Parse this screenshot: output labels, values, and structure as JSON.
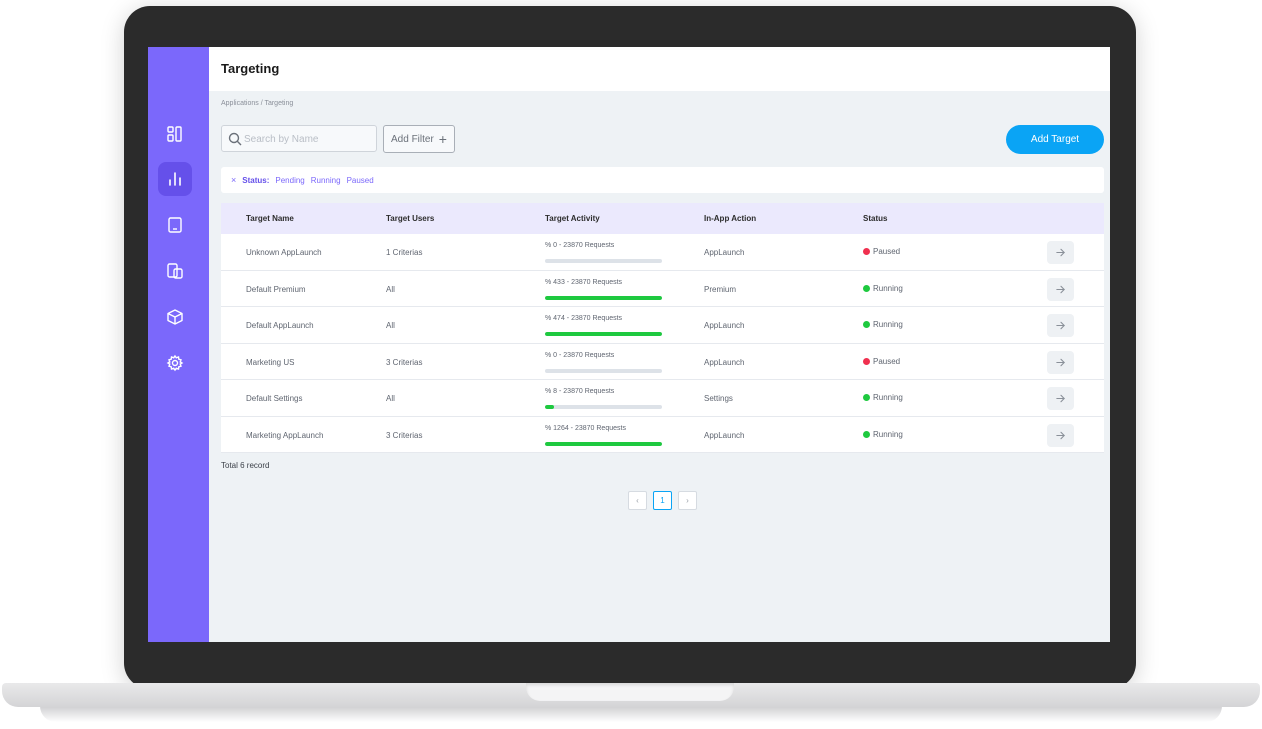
{
  "header": {
    "title": "Targeting"
  },
  "breadcrumb": "Applications / Targeting",
  "toolbar": {
    "search_placeholder": "Search by Name",
    "add_filter_label": "Add Filter",
    "add_filter_icon": "+",
    "add_target_label": "Add Target"
  },
  "filter_chip": {
    "close": "×",
    "key": "Status:",
    "values": [
      "Pending",
      "Running",
      "Paused"
    ]
  },
  "table": {
    "columns": [
      "Target Name",
      "Target Users",
      "Target Activity",
      "In-App Action",
      "Status"
    ],
    "rows": [
      {
        "name": "Unknown AppLaunch",
        "users": "1 Criterias",
        "activity": "% 0 - 23870 Requests",
        "progress": 0,
        "action": "AppLaunch",
        "status": "Paused"
      },
      {
        "name": "Default Premium",
        "users": "All",
        "activity": "% 433 - 23870 Requests",
        "progress": 100,
        "action": "Premium",
        "status": "Running"
      },
      {
        "name": "Default AppLaunch",
        "users": "All",
        "activity": "% 474 - 23870 Requests",
        "progress": 100,
        "action": "AppLaunch",
        "status": "Running"
      },
      {
        "name": "Marketing US",
        "users": "3 Criterias",
        "activity": "% 0 - 23870 Requests",
        "progress": 0,
        "action": "AppLaunch",
        "status": "Paused"
      },
      {
        "name": "Default Settings",
        "users": "All",
        "activity": "% 8 - 23870 Requests",
        "progress": 8,
        "action": "Settings",
        "status": "Running"
      },
      {
        "name": "Marketing AppLaunch",
        "users": "3 Criterias",
        "activity": "% 1264 - 23870 Requests",
        "progress": 100,
        "action": "AppLaunch",
        "status": "Running"
      }
    ]
  },
  "footer": {
    "total": "Total 6 record"
  },
  "pagination": {
    "prev": "‹",
    "current": "1",
    "next": "›"
  },
  "colors": {
    "sidebar": "#7b68fb",
    "accent": "#0aa4f5",
    "running": "#1ec93f",
    "paused": "#f0304f"
  },
  "sidebar_icons": [
    "dashboard-icon",
    "chart-icon",
    "tablet-icon",
    "devices-icon",
    "box-icon",
    "settings-icon"
  ]
}
